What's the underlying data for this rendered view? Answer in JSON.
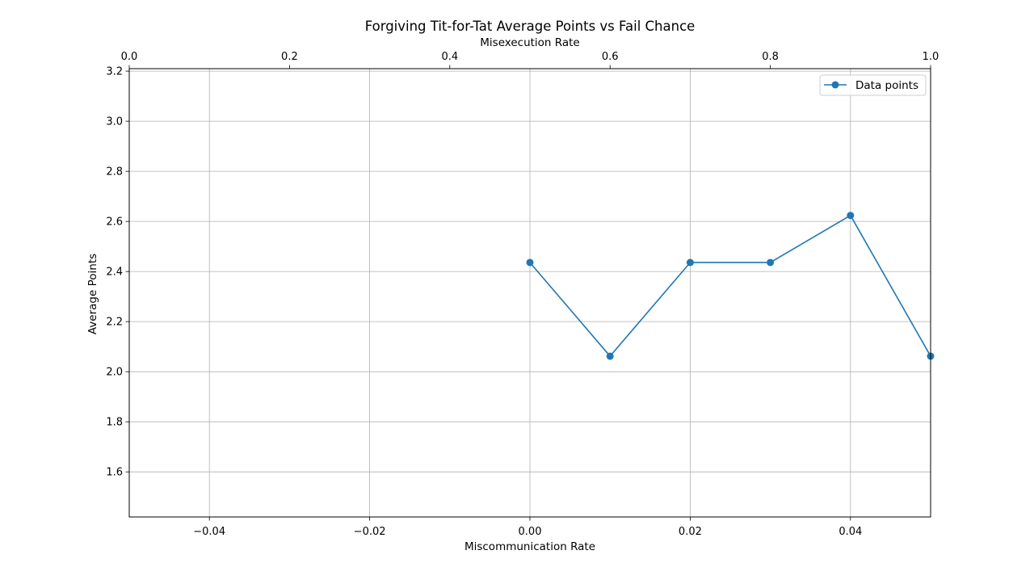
{
  "chart_data": {
    "type": "line",
    "title": "Forgiving Tit-for-Tat Average Points vs Fail Chance",
    "xlabel": "Miscommunication Rate",
    "ylabel": "Average Points",
    "x2label": "Misexecution Rate",
    "xlim": [
      -0.05,
      0.05
    ],
    "ylim": [
      1.42,
      3.21
    ],
    "x2lim": [
      0.0,
      1.0
    ],
    "xticks": [
      "−0.04",
      "−0.02",
      "0.00",
      "0.02",
      "0.04"
    ],
    "xtick_values": [
      -0.04,
      -0.02,
      0.0,
      0.02,
      0.04
    ],
    "yticks": [
      "1.6",
      "1.8",
      "2.0",
      "2.2",
      "2.4",
      "2.6",
      "2.8",
      "3.0",
      "3.2"
    ],
    "ytick_values": [
      1.6,
      1.8,
      2.0,
      2.2,
      2.4,
      2.6,
      2.8,
      3.0,
      3.2
    ],
    "x2ticks": [
      "0.0",
      "0.2",
      "0.4",
      "0.6",
      "0.8",
      "1.0"
    ],
    "x2tick_values": [
      0.0,
      0.2,
      0.4,
      0.6,
      0.8,
      1.0
    ],
    "grid": true,
    "legend_position": "upper right",
    "series": [
      {
        "name": "Data points",
        "color": "#1f77b4",
        "marker": "circle",
        "x": [
          0.0,
          0.01,
          0.02,
          0.03,
          0.04,
          0.05
        ],
        "y": [
          2.436,
          2.062,
          2.436,
          2.436,
          2.624,
          2.062
        ]
      }
    ]
  }
}
